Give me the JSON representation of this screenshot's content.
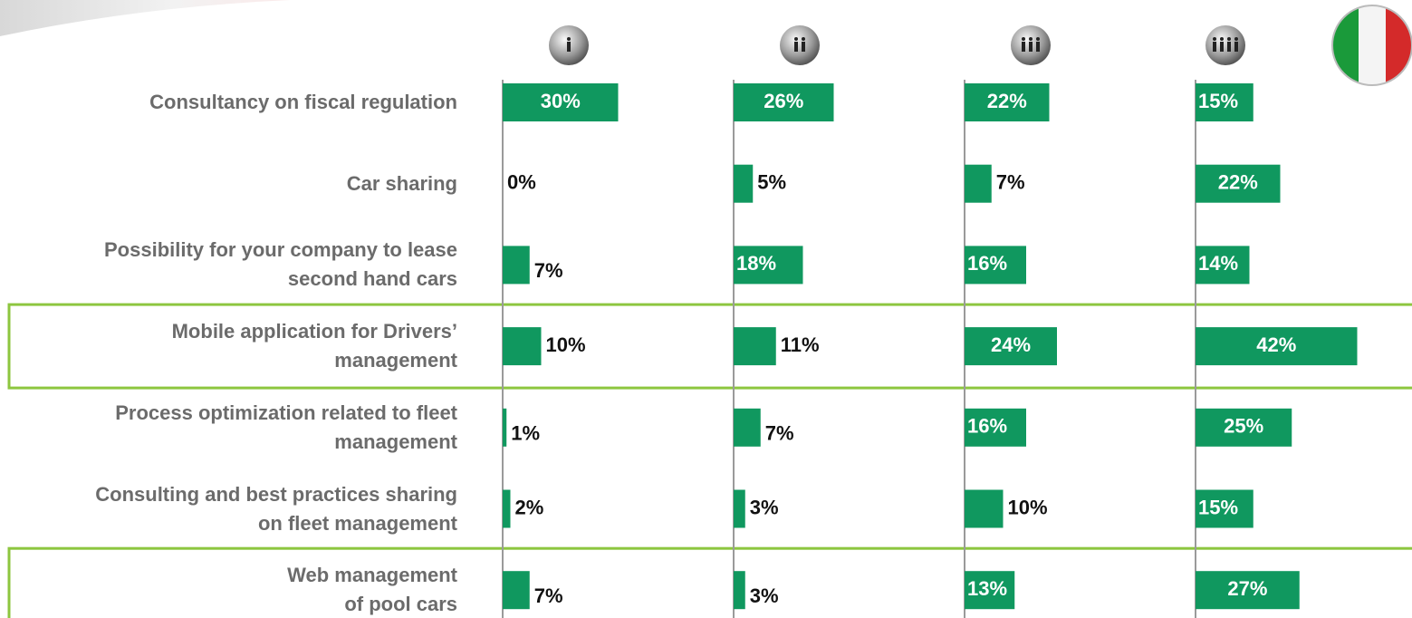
{
  "chart_data": {
    "type": "bar",
    "categories": [
      "Consultancy on fiscal regulation",
      "Car sharing",
      "Possibility for your company to lease\nsecond hand cars",
      "Mobile application for Drivers’\nmanagement",
      "Process optimization related to fleet\nmanagement",
      "Consulting and best practices sharing\non fleet management",
      "Web management\nof pool cars"
    ],
    "series": [
      {
        "color": "#10985f",
        "values": [
          30,
          0,
          7,
          10,
          1,
          2,
          7
        ],
        "value_labels": [
          "30%",
          "0%",
          "7%",
          "10%",
          "1%",
          "2%",
          "7%"
        ]
      },
      {
        "color": "#10985f",
        "values": [
          26,
          5,
          18,
          11,
          7,
          3,
          3
        ],
        "value_labels": [
          "26%",
          "5%",
          "18%",
          "11%",
          "7%",
          "3%",
          "3%"
        ]
      },
      {
        "color": "#10985f",
        "values": [
          22,
          7,
          16,
          24,
          16,
          10,
          13
        ],
        "value_labels": [
          "22%",
          "7%",
          "16%",
          "24%",
          "16%",
          "10%",
          "13%"
        ]
      },
      {
        "color": "#10985f",
        "values": [
          15,
          22,
          14,
          42,
          25,
          15,
          27
        ],
        "value_labels": [
          "15%",
          "22%",
          "14%",
          "42%",
          "25%",
          "15%",
          "27%"
        ]
      }
    ],
    "xlim": [
      0,
      60
    ],
    "highlighted_categories": [
      3,
      6
    ],
    "highlight_color": "#8dc63f"
  }
}
